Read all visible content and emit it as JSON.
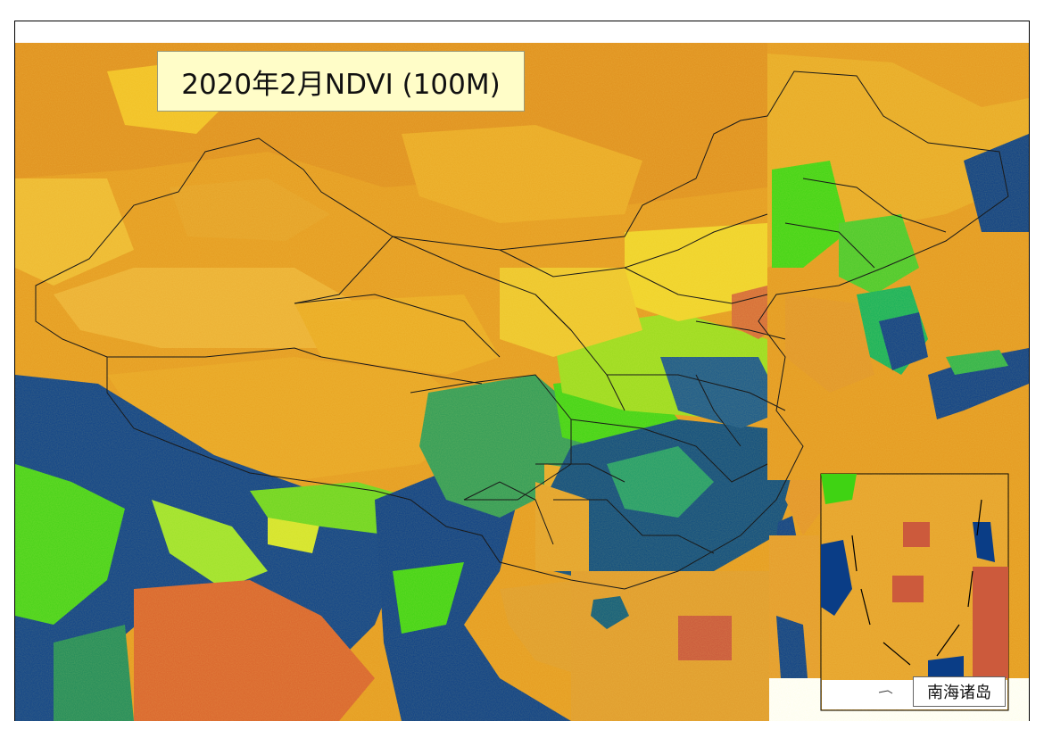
{
  "map": {
    "title": "2020年2月NDVI (100M)",
    "inset_label": "南海诸岛",
    "colors": {
      "barren_high": "#e59a1f",
      "barren_mid": "#f2b725",
      "desert_low": "#d98b2a",
      "sparse": "#f6e12a",
      "grass": "#b7e21f",
      "green": "#3fd313",
      "dense": "#0f8f6a",
      "very_dense": "#0a3d86",
      "water_no_data": "#cc5a3c",
      "border": "#1a1a1a",
      "title_bg": "#fffdc8"
    }
  }
}
